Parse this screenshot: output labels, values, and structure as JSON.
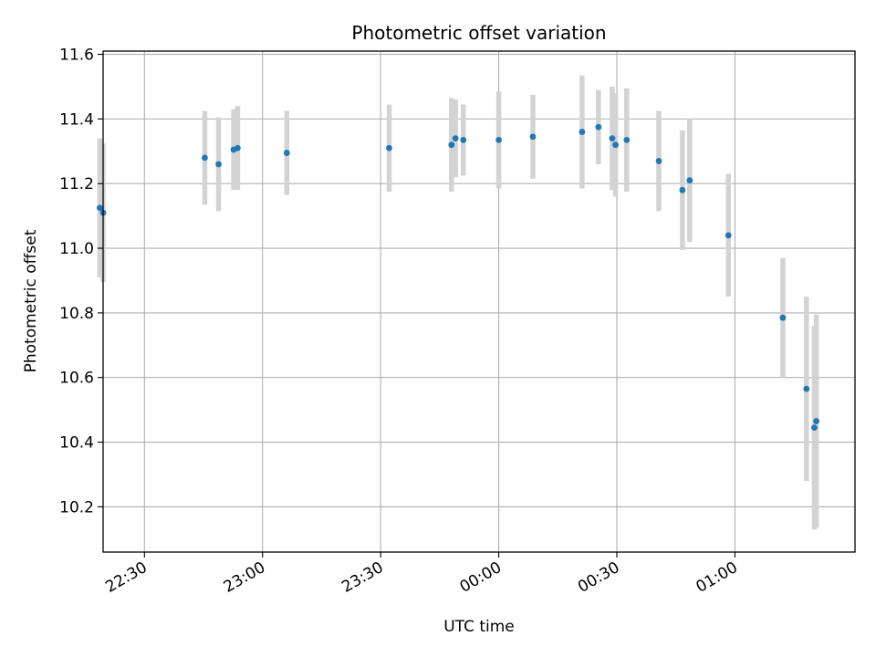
{
  "chart_data": {
    "type": "scatter",
    "title": "Photometric offset variation",
    "xlabel": "UTC time",
    "ylabel": "Photometric offset",
    "xlim": [
      "22:19:30",
      "01:30:30"
    ],
    "ylim": [
      10.06,
      11.61
    ],
    "x_tick_labels": [
      "22:30",
      "23:00",
      "23:30",
      "00:00",
      "00:30",
      "01:00"
    ],
    "x_tick_times": [
      "22:30",
      "23:00",
      "23:30",
      "00:00",
      "00:30",
      "01:00"
    ],
    "y_ticks": [
      10.2,
      10.4,
      10.6,
      10.8,
      11.0,
      11.2,
      11.4,
      11.6
    ],
    "y_tick_labels": [
      "10.2",
      "10.4",
      "10.6",
      "10.8",
      "11.0",
      "11.2",
      "11.4",
      "11.6"
    ],
    "grid": true,
    "point_color": "#1f77b4",
    "errorbar_color": "#d3d3d3",
    "series": [
      {
        "points": [
          {
            "t": "22:18:40",
            "y": 11.125,
            "err": 0.215
          },
          {
            "t": "22:19:30",
            "y": 11.11,
            "err": 0.215
          },
          {
            "t": "22:45:20",
            "y": 11.28,
            "err": 0.145
          },
          {
            "t": "22:48:50",
            "y": 11.26,
            "err": 0.145
          },
          {
            "t": "22:52:40",
            "y": 11.305,
            "err": 0.125
          },
          {
            "t": "22:53:40",
            "y": 11.31,
            "err": 0.13
          },
          {
            "t": "23:06:10",
            "y": 11.295,
            "err": 0.13
          },
          {
            "t": "23:32:10",
            "y": 11.31,
            "err": 0.135
          },
          {
            "t": "23:48:00",
            "y": 11.32,
            "err": 0.145
          },
          {
            "t": "23:49:00",
            "y": 11.34,
            "err": 0.12
          },
          {
            "t": "23:51:00",
            "y": 11.335,
            "err": 0.11
          },
          {
            "t": "00:00:00",
            "y": 11.335,
            "err": 0.15
          },
          {
            "t": "00:08:40",
            "y": 11.345,
            "err": 0.13
          },
          {
            "t": "00:21:10",
            "y": 11.36,
            "err": 0.175
          },
          {
            "t": "00:25:20",
            "y": 11.375,
            "err": 0.115
          },
          {
            "t": "00:28:50",
            "y": 11.34,
            "err": 0.16
          },
          {
            "t": "00:29:40",
            "y": 11.32,
            "err": 0.16
          },
          {
            "t": "00:32:30",
            "y": 11.335,
            "err": 0.16
          },
          {
            "t": "00:40:40",
            "y": 11.27,
            "err": 0.155
          },
          {
            "t": "00:46:40",
            "y": 11.18,
            "err": 0.185
          },
          {
            "t": "00:48:30",
            "y": 11.21,
            "err": 0.19
          },
          {
            "t": "00:58:20",
            "y": 11.04,
            "err": 0.19
          },
          {
            "t": "01:12:10",
            "y": 10.785,
            "err": 0.185
          },
          {
            "t": "01:18:10",
            "y": 10.565,
            "err": 0.285
          },
          {
            "t": "01:20:10",
            "y": 10.445,
            "err": 0.315
          },
          {
            "t": "01:20:40",
            "y": 10.465,
            "err": 0.33
          }
        ]
      }
    ]
  }
}
